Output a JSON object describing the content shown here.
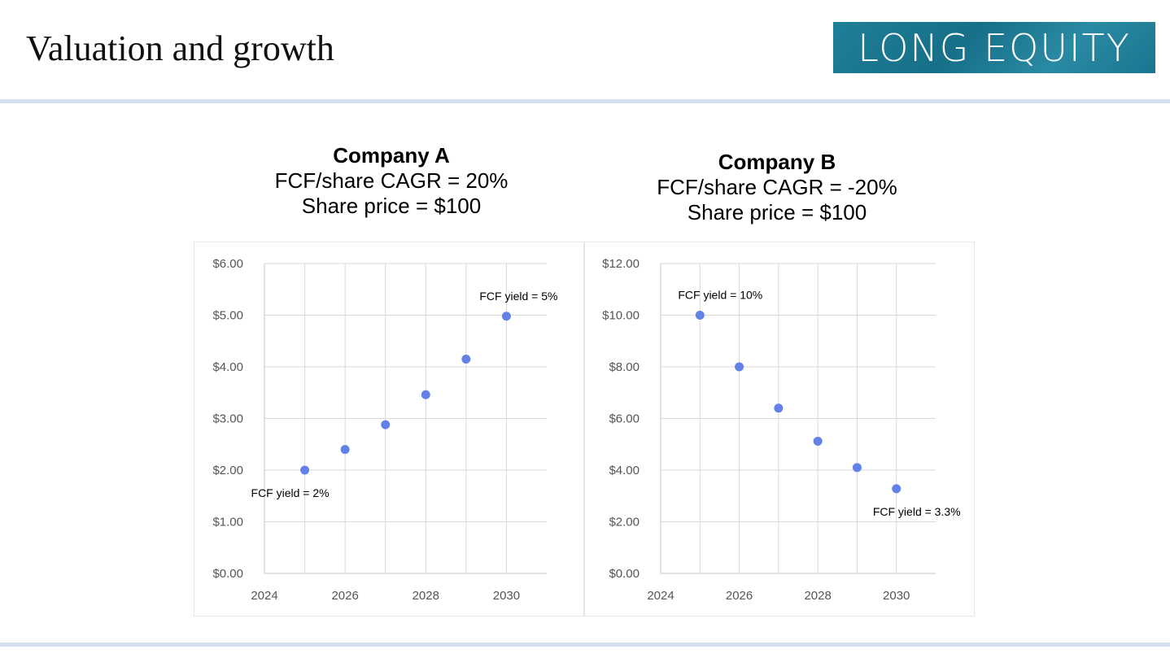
{
  "slide": {
    "title": "Valuation and growth",
    "logo_text": "LONG EQUITY"
  },
  "colors": {
    "point": "#6282ea",
    "rule": "#d3e1ef",
    "grid": "#d9d9d9",
    "tick_text": "#555555"
  },
  "chart_data": [
    {
      "type": "scatter",
      "title": "Company A",
      "subtitle": [
        "FCF/share CAGR = 20%",
        "Share price = $100"
      ],
      "x": [
        2025,
        2026,
        2027,
        2028,
        2029,
        2030
      ],
      "y": [
        2.0,
        2.4,
        2.88,
        3.46,
        4.15,
        4.98
      ],
      "xlim": [
        2024,
        2031
      ],
      "ylim": [
        0,
        6
      ],
      "xticks": [
        "2024",
        "2026",
        "2028",
        "2030"
      ],
      "xtick_values": [
        2024,
        2026,
        2028,
        2030
      ],
      "yticks": [
        "$0.00",
        "$1.00",
        "$2.00",
        "$3.00",
        "$4.00",
        "$5.00",
        "$6.00"
      ],
      "ytick_values": [
        0,
        1,
        2,
        3,
        4,
        5,
        6
      ],
      "grid": true,
      "annotations": [
        {
          "text": "FCF yield = 2%",
          "x": 2025,
          "y": 2.0,
          "position": "below"
        },
        {
          "text": "FCF yield = 5%",
          "x": 2030,
          "y": 4.98,
          "position": "above"
        }
      ]
    },
    {
      "type": "scatter",
      "title": "Company B",
      "subtitle": [
        "FCF/share CAGR = -20%",
        "Share price = $100"
      ],
      "x": [
        2025,
        2026,
        2027,
        2028,
        2029,
        2030
      ],
      "y": [
        10.0,
        8.0,
        6.4,
        5.12,
        4.1,
        3.28
      ],
      "xlim": [
        2024,
        2031
      ],
      "ylim": [
        0,
        12
      ],
      "xticks": [
        "2024",
        "2026",
        "2028",
        "2030"
      ],
      "xtick_values": [
        2024,
        2026,
        2028,
        2030
      ],
      "yticks": [
        "$0.00",
        "$2.00",
        "$4.00",
        "$6.00",
        "$8.00",
        "$10.00",
        "$12.00"
      ],
      "ytick_values": [
        0,
        2,
        4,
        6,
        8,
        10,
        12
      ],
      "grid": true,
      "annotations": [
        {
          "text": "FCF yield = 10%",
          "x": 2025,
          "y": 10.0,
          "position": "above"
        },
        {
          "text": "FCF yield = 3.3%",
          "x": 2030,
          "y": 3.28,
          "position": "below"
        }
      ]
    }
  ]
}
